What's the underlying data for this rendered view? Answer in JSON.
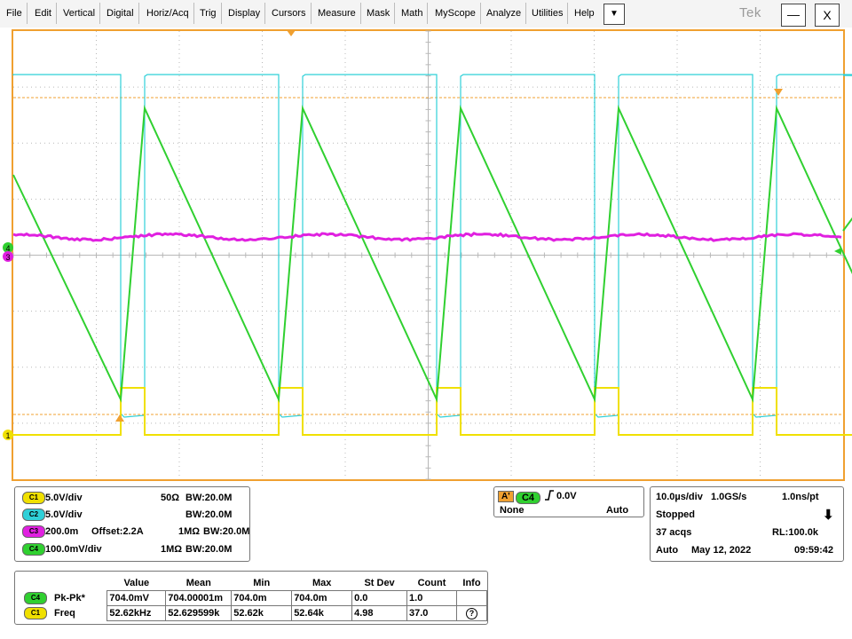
{
  "menu": {
    "items": [
      "File",
      "Edit",
      "Vertical",
      "Digital",
      "Horiz/Acq",
      "Trig",
      "Display",
      "Cursors",
      "Measure",
      "Mask",
      "Math",
      "MyScope",
      "Analyze",
      "Utilities",
      "Help"
    ],
    "dropdown_glyph": "▼",
    "brand": "Tek",
    "minimize_glyph": "—",
    "close_glyph": "X"
  },
  "colors": {
    "ch1": "#f0e000",
    "ch2": "#2fd0d8",
    "ch3": "#e020e0",
    "ch4": "#30d030",
    "frame": "#f0a030",
    "grid": "#b8b8b8"
  },
  "markers": {
    "ch1": "1",
    "ch3": "3",
    "ch4": "4"
  },
  "channels": [
    {
      "badge": "C1",
      "scale": "5.0V/div",
      "impedance": "50Ω",
      "bw": "W:20.0M",
      "bw_prefix": "B",
      "offset": ""
    },
    {
      "badge": "C2",
      "scale": "5.0V/div",
      "impedance": "",
      "bw": "W:20.0M",
      "bw_prefix": "B",
      "offset": ""
    },
    {
      "badge": "C3",
      "scale": "200.0m",
      "impedance": "1MΩ",
      "bw": "W:20.0M",
      "bw_prefix": "B",
      "offset": "Offset:2.2A"
    },
    {
      "badge": "C4",
      "scale": "100.0mV/div",
      "impedance": "1MΩ",
      "bw": "W:20.0M",
      "bw_prefix": "B",
      "offset": ""
    }
  ],
  "trigger": {
    "mode_badge": "A'",
    "source_badge": "C4",
    "slope_glyph": "⎍",
    "level": "0.0V",
    "coupling": "None",
    "mode": "Auto"
  },
  "acquisition": {
    "timebase": "10.0µs/div",
    "sample_rate": "1.0GS/s",
    "resolution": "1.0ns/pt",
    "state": "Stopped",
    "acqs": "37 acqs",
    "record_length": "RL:100.0k",
    "trigger_mode": "Auto",
    "date": "May 12, 2022",
    "time": "09:59:42",
    "arrow_glyph": "⬇"
  },
  "measurements": {
    "headers": [
      "Value",
      "Mean",
      "Min",
      "Max",
      "St Dev",
      "Count",
      "Info"
    ],
    "rows": [
      {
        "badge": "C4",
        "name": "Pk-Pk*",
        "value": "704.0mV",
        "mean": "704.00001m",
        "min": "704.0m",
        "max": "704.0m",
        "stdev": "0.0",
        "count": "1.0",
        "info": ""
      },
      {
        "badge": "C1",
        "name": "Freq",
        "value": "52.62kHz",
        "mean": "52.629599k",
        "min": "52.62k",
        "max": "52.64k",
        "stdev": "4.98",
        "count": "37.0",
        "info": "?"
      }
    ]
  }
}
